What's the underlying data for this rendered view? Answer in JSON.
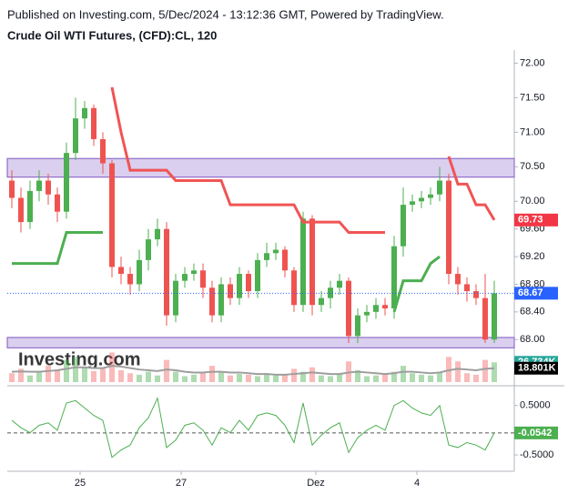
{
  "chart_data": {
    "type": "candlestick",
    "publisher": "Published on Investing.com, 5/Dec/2024 - 13:12:36 GMT, Powered by TradingView.",
    "title": "Crude Oil WTI Futures, (CFD):CL, 120",
    "watermark": "Investing.com",
    "up_color": "#4caf50",
    "down_color": "#ef5350",
    "open": [
      70.3,
      70.05,
      69.7,
      70.15,
      70.3,
      70.1,
      69.85,
      70.7,
      71.2,
      71.35,
      70.9,
      70.55,
      69.05,
      68.95,
      68.8,
      69.15,
      69.45,
      69.6,
      68.35,
      68.85,
      68.95,
      69.0,
      68.75,
      68.35,
      68.8,
      68.6,
      68.95,
      68.7,
      69.15,
      69.25,
      69.3,
      69.0,
      68.5,
      69.75,
      68.5,
      68.6,
      68.75,
      68.85,
      68.05,
      68.35,
      68.4,
      68.5,
      68.45,
      69.35,
      69.95,
      70.0,
      70.05,
      70.1,
      70.3,
      68.95,
      68.8,
      68.7,
      68.6,
      68.0
    ],
    "high": [
      70.45,
      70.2,
      70.3,
      70.45,
      70.4,
      70.2,
      70.85,
      71.5,
      71.45,
      71.4,
      71.0,
      70.6,
      69.2,
      69.05,
      69.3,
      69.6,
      69.75,
      69.7,
      68.95,
      69.05,
      69.1,
      69.1,
      68.85,
      68.9,
      68.9,
      69.05,
      69.0,
      69.25,
      69.4,
      69.4,
      69.35,
      69.05,
      69.85,
      69.8,
      68.7,
      68.85,
      68.95,
      68.9,
      68.45,
      68.5,
      68.6,
      68.6,
      69.5,
      70.2,
      70.1,
      70.15,
      70.2,
      70.5,
      70.4,
      69.05,
      68.9,
      68.8,
      68.95,
      68.85
    ],
    "low": [
      69.9,
      69.55,
      69.6,
      70.0,
      69.95,
      69.7,
      69.75,
      70.6,
      71.05,
      70.8,
      70.4,
      68.9,
      68.8,
      68.65,
      68.7,
      69.0,
      69.35,
      68.2,
      68.25,
      68.75,
      68.85,
      68.6,
      68.25,
      68.25,
      68.5,
      68.5,
      68.6,
      68.6,
      69.05,
      69.15,
      68.9,
      68.4,
      68.4,
      68.35,
      68.4,
      68.45,
      68.65,
      67.95,
      67.95,
      68.25,
      68.3,
      68.35,
      68.3,
      69.2,
      69.85,
      69.9,
      69.95,
      70.0,
      68.8,
      68.65,
      68.55,
      68.5,
      67.95,
      67.95
    ],
    "close": [
      70.05,
      69.7,
      70.15,
      70.3,
      70.1,
      69.85,
      70.7,
      71.2,
      71.35,
      70.9,
      70.55,
      69.05,
      68.95,
      68.8,
      69.15,
      69.45,
      69.6,
      68.35,
      68.85,
      68.95,
      69.0,
      68.75,
      68.35,
      68.8,
      68.6,
      68.95,
      68.7,
      69.15,
      69.25,
      69.3,
      69.0,
      68.5,
      69.75,
      68.5,
      68.6,
      68.75,
      68.85,
      68.05,
      68.35,
      68.4,
      68.5,
      68.45,
      69.35,
      69.95,
      70.0,
      70.05,
      70.1,
      70.3,
      68.95,
      68.8,
      68.7,
      68.6,
      68.0,
      68.67
    ],
    "ylim": [
      67.7,
      72.15
    ],
    "yticks": [
      {
        "value": 72,
        "label": "72.00"
      },
      {
        "value": 71.5,
        "label": "71.50"
      },
      {
        "value": 71,
        "label": "71.00"
      },
      {
        "value": 70.5,
        "label": "70.50"
      },
      {
        "value": 70,
        "label": "70.00"
      },
      {
        "value": 69.6,
        "label": "69.60"
      },
      {
        "value": 69.2,
        "label": "69.20"
      },
      {
        "value": 68.8,
        "label": "68.80"
      },
      {
        "value": 68.4,
        "label": "68.40"
      },
      {
        "value": 68,
        "label": "68.00"
      }
    ],
    "xlim": [
      -0.5,
      55.2
    ],
    "xticks": [
      {
        "value": 7.5,
        "label": "25"
      },
      {
        "value": 18.6,
        "label": "27"
      },
      {
        "value": 33.4,
        "label": "Dez"
      },
      {
        "value": 44.5,
        "label": "4"
      }
    ],
    "bands": [
      {
        "from": 70.35,
        "to": 70.62
      },
      {
        "from": 67.88,
        "to": 68.03
      }
    ],
    "supertrend_up": {
      "color": "#4caf50",
      "values": [
        69.1,
        69.1,
        69.1,
        69.1,
        69.1,
        69.1,
        69.55,
        69.55,
        69.55,
        69.55,
        69.55,
        null,
        null,
        null,
        null,
        null,
        null,
        null,
        null,
        null,
        null,
        null,
        null,
        null,
        null,
        null,
        null,
        null,
        null,
        null,
        null,
        null,
        null,
        null,
        null,
        null,
        null,
        null,
        null,
        null,
        null,
        null,
        68.4,
        68.85,
        68.85,
        68.85,
        69.1,
        69.2,
        null,
        null,
        null,
        null,
        null,
        null
      ]
    },
    "supertrend_down": {
      "color": "#f05454",
      "values": [
        null,
        null,
        null,
        null,
        null,
        null,
        null,
        null,
        null,
        null,
        null,
        71.65,
        71.0,
        70.45,
        70.45,
        70.45,
        70.45,
        70.45,
        70.3,
        70.3,
        70.3,
        70.3,
        70.3,
        70.3,
        69.95,
        69.95,
        69.95,
        69.95,
        69.95,
        69.95,
        69.95,
        69.95,
        69.7,
        69.7,
        69.7,
        69.7,
        69.7,
        69.55,
        69.55,
        69.55,
        69.55,
        69.55,
        null,
        null,
        null,
        null,
        null,
        null,
        70.65,
        70.25,
        70.25,
        69.95,
        69.95,
        69.73
      ]
    },
    "volume": [
      12,
      18,
      9,
      14,
      22,
      16,
      30,
      34,
      20,
      15,
      18,
      40,
      16,
      12,
      10,
      14,
      9,
      30,
      14,
      8,
      10,
      12,
      22,
      14,
      9,
      11,
      10,
      8,
      12,
      9,
      10,
      18,
      14,
      20,
      9,
      8,
      10,
      28,
      16,
      8,
      9,
      10,
      14,
      22,
      12,
      10,
      9,
      14,
      34,
      28,
      12,
      10,
      30,
      26.734
    ],
    "volume_ma": [
      14,
      14.5,
      14,
      14,
      15,
      16,
      18,
      20,
      20,
      19,
      19,
      22,
      21,
      19,
      17,
      16,
      15,
      17,
      16,
      14,
      13,
      13,
      14,
      14,
      13,
      13,
      12,
      11,
      11,
      10,
      10,
      11,
      12,
      13,
      12,
      11,
      11,
      13,
      14,
      13,
      12,
      11,
      12,
      14,
      14,
      13,
      12,
      13,
      16,
      18,
      17,
      16,
      18,
      18.801
    ],
    "vlim": [
      0,
      80
    ],
    "volume_tags": [
      {
        "value": 26.734,
        "label": "26.734K",
        "color": "#26a69a"
      },
      {
        "value": 18.801,
        "label": "18.801K",
        "color": "#000000"
      }
    ],
    "price_tags": [
      {
        "value": 69.73,
        "label": "69.73",
        "color": "#f23645"
      },
      {
        "value": 68.67,
        "label": "68.67",
        "color": "#2962ff"
      }
    ],
    "oscillator": {
      "color": "#4caf50",
      "values": [
        0.2,
        0.05,
        -0.05,
        0.1,
        0.15,
        0.0,
        0.55,
        0.6,
        0.45,
        0.3,
        0.2,
        -0.55,
        -0.4,
        -0.3,
        0.05,
        0.25,
        0.65,
        -0.35,
        -0.2,
        0.1,
        0.15,
        0.0,
        -0.3,
        0.05,
        -0.05,
        0.2,
        0.0,
        0.3,
        0.35,
        0.3,
        0.1,
        -0.25,
        0.55,
        -0.3,
        -0.1,
        0.05,
        0.15,
        -0.45,
        -0.15,
        0.0,
        0.1,
        0.0,
        0.5,
        0.6,
        0.45,
        0.35,
        0.3,
        0.5,
        -0.3,
        -0.35,
        -0.25,
        -0.3,
        -0.4,
        -0.0542
      ]
    },
    "olim": [
      -0.83,
      0.9
    ],
    "oticks": [
      {
        "value": 0.5,
        "label": "0.5000"
      },
      {
        "value": -0.5,
        "label": "-0.5000"
      }
    ],
    "oscillator_tag": {
      "value": -0.0542,
      "label": "-0.0542",
      "color": "#4caf50"
    }
  }
}
